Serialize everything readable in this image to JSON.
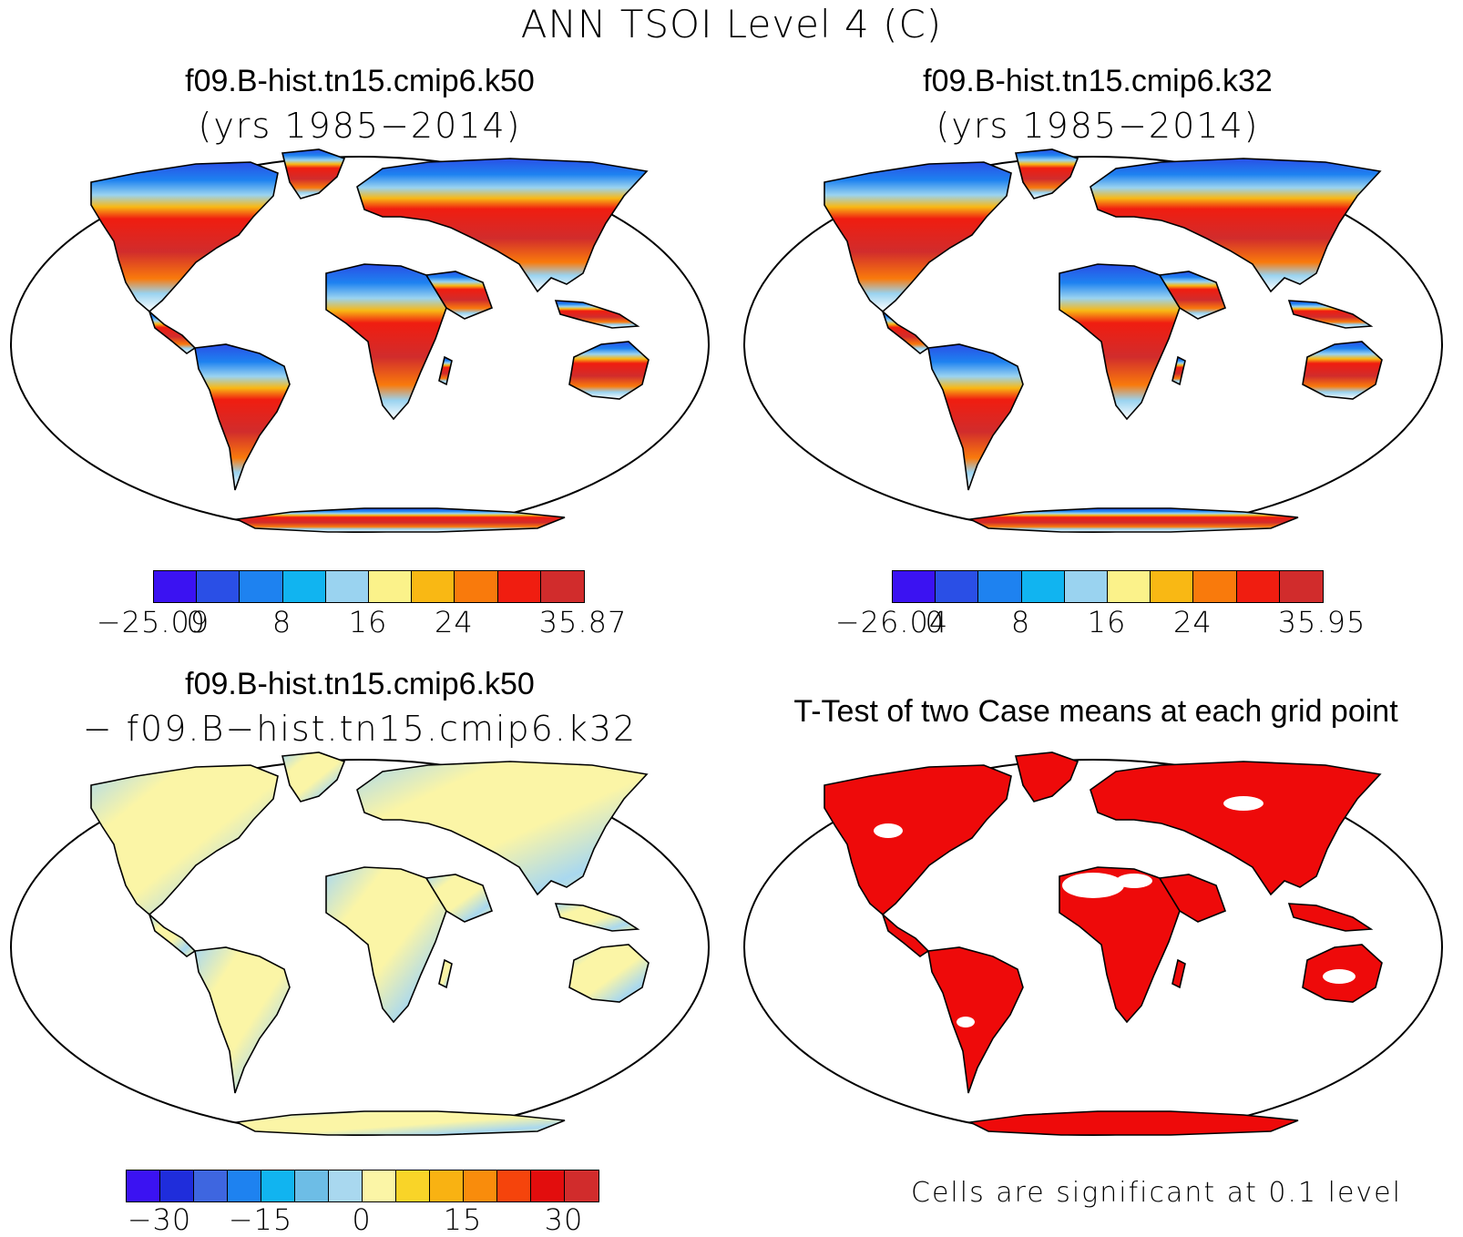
{
  "title": "ANN TSOI Level 4 (C)",
  "panels": [
    {
      "name": "case1",
      "title": "f09.B-hist.tn15.cmip6.k50",
      "subtitle": "(yrs 1985−2014)"
    },
    {
      "name": "case2",
      "title": "f09.B-hist.tn15.cmip6.k32",
      "subtitle": "(yrs 1985−2014)"
    },
    {
      "name": "diff",
      "title": "f09.B-hist.tn15.cmip6.k50",
      "subtitle": "− f09.B−hist.tn15.cmip6.k32"
    },
    {
      "name": "ttest",
      "title": "T-Test of two Case means at each grid point",
      "subtitle": ""
    }
  ],
  "colorbars": {
    "case1": {
      "colors": [
        "#3b12f2",
        "#2a4fe6",
        "#1e82f0",
        "#11b4f0",
        "#9ad3f0",
        "#fbf28a",
        "#f9b814",
        "#f97a0c",
        "#f01d10",
        "#d12c2c"
      ],
      "labels": [
        "−25.09",
        "0",
        "8",
        "16",
        "24",
        "35.87"
      ]
    },
    "case2": {
      "colors": [
        "#3b12f2",
        "#2a4fe6",
        "#1e82f0",
        "#11b4f0",
        "#9ad3f0",
        "#fbf28a",
        "#f9b814",
        "#f97a0c",
        "#f01d10",
        "#d12c2c"
      ],
      "labels": [
        "−26.04",
        "0",
        "8",
        "16",
        "24",
        "35.95"
      ]
    },
    "diff": {
      "colors": [
        "#3b12f2",
        "#1f2ddb",
        "#3e66e0",
        "#1e82f0",
        "#11b4f0",
        "#6dbde6",
        "#a9d8ef",
        "#fbf5a6",
        "#f9d428",
        "#f9b212",
        "#f98c0c",
        "#f5440c",
        "#e20d0d",
        "#d12c2c"
      ],
      "labels": [
        "−30",
        "−15",
        "0",
        "15",
        "30"
      ]
    }
  },
  "note": "Cells are significant at 0.1 level"
}
